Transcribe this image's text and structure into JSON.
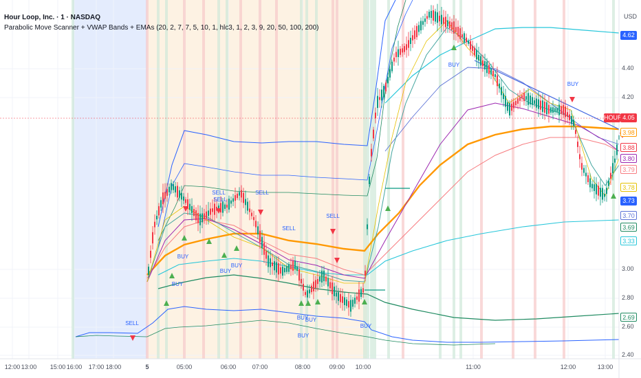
{
  "header": {
    "symbol_line": "Hour Loop, Inc. · 1 · NASDAQ",
    "indicator_line": "Parabolic Move Scanner + VWAP Bands + EMAs (20, 2, 7, 7, 5, 10, 1, hlc3, 1, 2, 3, 9, 20, 50, 100, 200)"
  },
  "price_axis": {
    "unit": "USD",
    "labels": [
      "4.40",
      "4.20",
      "3.00",
      "2.80",
      "2.60",
      "2.40"
    ]
  },
  "price_tags": [
    {
      "text": "4.62",
      "bg": "#2962ff",
      "fg": "#ffffff"
    },
    {
      "text": "HOUR",
      "bg": "#f23645",
      "fg": "#ffffff"
    },
    {
      "text": "4.05",
      "bg": "#f23645",
      "fg": "#ffffff"
    },
    {
      "text": "3.98",
      "bg": "#ffffff",
      "fg": "#ff9800"
    },
    {
      "text": "3.88",
      "bg": "#ffffff",
      "fg": "#f23645"
    },
    {
      "text": "3.80",
      "bg": "#ffffff",
      "fg": "#9c27b0"
    },
    {
      "text": "3.79",
      "bg": "#ffffff",
      "fg": "#f77c80"
    },
    {
      "text": "3.78",
      "bg": "#ffffff",
      "fg": "#e5c100"
    },
    {
      "text": "3.73",
      "bg": "#2962ff",
      "fg": "#ffffff"
    },
    {
      "text": "3.70",
      "bg": "#ffffff",
      "fg": "#5b72d6"
    },
    {
      "text": "3.69",
      "bg": "#ffffff",
      "fg": "#1e8a60"
    },
    {
      "text": "3.33",
      "bg": "#ffffff",
      "fg": "#26c6da"
    },
    {
      "text": "2.69",
      "bg": "#ffffff",
      "fg": "#1e8a60"
    }
  ],
  "time_axis": {
    "labels": [
      "12:00",
      "13:00",
      "15:00",
      "16:00",
      "17:00",
      "18:00",
      "5",
      "05:00",
      "06:00",
      "07:00",
      "08:00",
      "09:00",
      "10:00",
      "11:00",
      "12:00",
      "13:00"
    ]
  },
  "signals": [
    {
      "text": "SELL"
    },
    {
      "text": "SELL"
    },
    {
      "text": "SELL"
    },
    {
      "text": "SELL"
    },
    {
      "text": "SELL"
    },
    {
      "text": "SELL"
    },
    {
      "text": "BUY"
    },
    {
      "text": "BUY"
    },
    {
      "text": "BUY"
    },
    {
      "text": "BUY"
    },
    {
      "text": "BUY"
    },
    {
      "text": "BUY"
    },
    {
      "text": "BUY"
    },
    {
      "text": "BUY"
    },
    {
      "text": "BUY"
    },
    {
      "text": "BUY"
    }
  ],
  "colors": {
    "up": "#089981",
    "down": "#f23645",
    "ema_orange": "#ff9800",
    "vwap_blue": "#2962ff",
    "band_cyan": "#26c6da",
    "band_green": "#1e8a60",
    "ema_purple": "#9c27b0",
    "ema_red": "#f77c80",
    "ema_yellow": "#e5c100",
    "session_blue": "#e3ecfd",
    "session_orange": "#fdf1e0",
    "trend_line": "#3f63e0"
  }
}
